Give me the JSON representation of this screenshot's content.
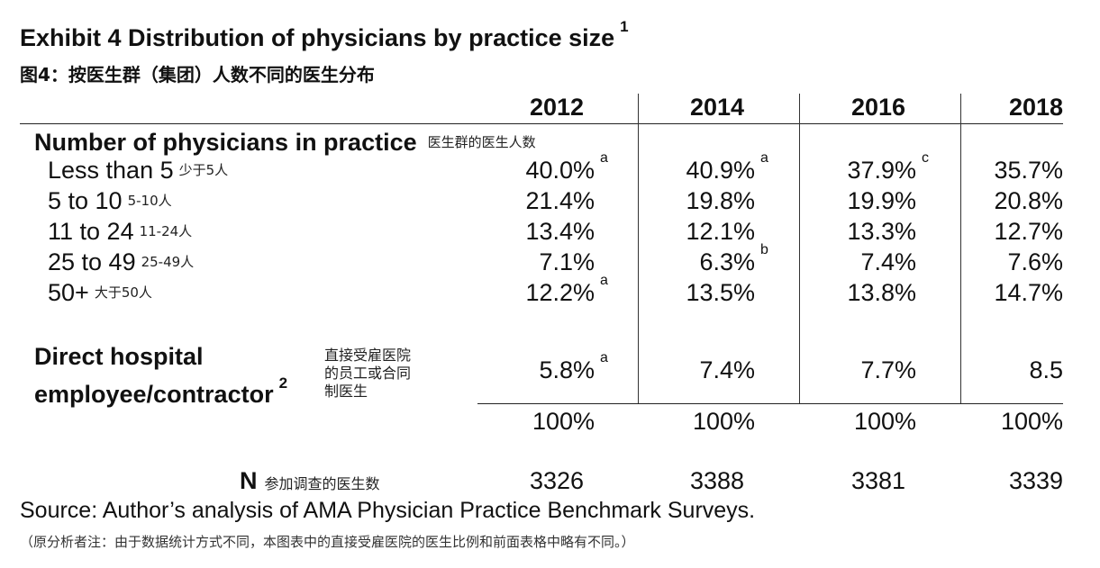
{
  "chart_data": {
    "type": "table",
    "title": "Exhibit 4 Distribution of physicians by practice size",
    "title_footnote": "1",
    "subtitle_cn": "图4：按医生群（集团）人数不同的医生分布",
    "columns": [
      "2012",
      "2014",
      "2016",
      "2018"
    ],
    "section_label": "Number of physicians in practice",
    "section_label_cn": "医生群的医生人数",
    "rows": [
      {
        "label": "Less than 5",
        "label_cn": "少于5人",
        "cells": [
          {
            "value": "40.0%",
            "note": "a"
          },
          {
            "value": "40.9%",
            "note": "a"
          },
          {
            "value": "37.9%",
            "note": "c"
          },
          {
            "value": "35.7%",
            "note": ""
          }
        ]
      },
      {
        "label": "5 to 10",
        "label_cn": "5-10人",
        "cells": [
          {
            "value": "21.4%",
            "note": ""
          },
          {
            "value": "19.8%",
            "note": ""
          },
          {
            "value": "19.9%",
            "note": ""
          },
          {
            "value": "20.8%",
            "note": ""
          }
        ]
      },
      {
        "label": "11 to 24",
        "label_cn": "11-24人",
        "cells": [
          {
            "value": "13.4%",
            "note": ""
          },
          {
            "value": "12.1%",
            "note": ""
          },
          {
            "value": "13.3%",
            "note": ""
          },
          {
            "value": "12.7%",
            "note": ""
          }
        ]
      },
      {
        "label": "25 to 49",
        "label_cn": "25-49人",
        "cells": [
          {
            "value": "7.1%",
            "note": ""
          },
          {
            "value": "6.3%",
            "note": "b"
          },
          {
            "value": "7.4%",
            "note": ""
          },
          {
            "value": "7.6%",
            "note": ""
          }
        ]
      },
      {
        "label": "50+",
        "label_cn": "大于50人",
        "cells": [
          {
            "value": "12.2%",
            "note": "a"
          },
          {
            "value": "13.5%",
            "note": ""
          },
          {
            "value": "13.8%",
            "note": ""
          },
          {
            "value": "14.7%",
            "note": ""
          }
        ]
      }
    ],
    "hospital_row": {
      "label_line1": "Direct hospital",
      "label_line2": "employee/contractor",
      "label_footnote": "2",
      "label_cn": [
        "直接受雇医院",
        "的员工或合同",
        "制医生"
      ],
      "cells": [
        {
          "value": "5.8%",
          "note": "a"
        },
        {
          "value": "7.4%",
          "note": ""
        },
        {
          "value": "7.7%",
          "note": ""
        },
        {
          "value": "8.5",
          "note": ""
        }
      ]
    },
    "total_row": [
      "100%",
      "100%",
      "100%",
      "100%"
    ],
    "n_row": {
      "label": "N",
      "label_cn": "参加调查的医生数",
      "values": [
        3326,
        3388,
        3381,
        3339
      ]
    },
    "source": "Source: Author’s analysis of AMA Physician Practice Benchmark Surveys.",
    "note_cn": "（原分析者注：由于数据统计方式不同，本图表中的直接受雇医院的医生比例和前面表格中略有不同。）"
  }
}
